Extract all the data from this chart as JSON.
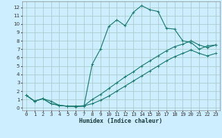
{
  "xlabel": "Humidex (Indice chaleur)",
  "bg_color": "#cceeff",
  "line_color": "#1a7a6e",
  "grid_color": "#aacccc",
  "xlim": [
    -0.5,
    23.5
  ],
  "ylim": [
    -0.3,
    12.7
  ],
  "xticks": [
    0,
    1,
    2,
    3,
    4,
    5,
    6,
    7,
    8,
    9,
    10,
    11,
    12,
    13,
    14,
    15,
    16,
    17,
    18,
    19,
    20,
    21,
    22,
    23
  ],
  "yticks": [
    0,
    1,
    2,
    3,
    4,
    5,
    6,
    7,
    8,
    9,
    10,
    11,
    12
  ],
  "line1_x": [
    0,
    1,
    2,
    3,
    4,
    5,
    6,
    7,
    8,
    9,
    10,
    11,
    12,
    13,
    14,
    15,
    16,
    17,
    18,
    19,
    20,
    21,
    22,
    23
  ],
  "line1_y": [
    1.5,
    0.8,
    1.1,
    0.8,
    0.3,
    0.2,
    0.15,
    0.2,
    5.2,
    7.0,
    9.7,
    10.5,
    9.8,
    11.4,
    12.2,
    11.7,
    11.5,
    9.5,
    9.4,
    8.0,
    7.8,
    7.0,
    7.4,
    7.5
  ],
  "line2_x": [
    0,
    1,
    2,
    3,
    4,
    5,
    6,
    7,
    8,
    9,
    10,
    11,
    12,
    13,
    14,
    15,
    16,
    17,
    18,
    19,
    20,
    21,
    22,
    23
  ],
  "line2_y": [
    1.5,
    0.8,
    1.1,
    0.5,
    0.3,
    0.2,
    0.2,
    0.25,
    1.0,
    1.6,
    2.3,
    3.0,
    3.7,
    4.3,
    5.0,
    5.6,
    6.2,
    6.8,
    7.3,
    7.6,
    8.0,
    7.5,
    7.2,
    7.5
  ],
  "line3_x": [
    0,
    1,
    2,
    3,
    4,
    5,
    6,
    7,
    8,
    9,
    10,
    11,
    12,
    13,
    14,
    15,
    16,
    17,
    18,
    19,
    20,
    21,
    22,
    23
  ],
  "line3_y": [
    1.5,
    0.8,
    1.1,
    0.5,
    0.3,
    0.2,
    0.2,
    0.25,
    0.5,
    0.9,
    1.4,
    2.0,
    2.6,
    3.2,
    3.8,
    4.4,
    5.0,
    5.6,
    6.1,
    6.5,
    6.9,
    6.5,
    6.2,
    6.5
  ],
  "xlabel_fontsize": 6.0,
  "tick_fontsize": 5.2,
  "linewidth": 0.85,
  "markersize": 2.2
}
